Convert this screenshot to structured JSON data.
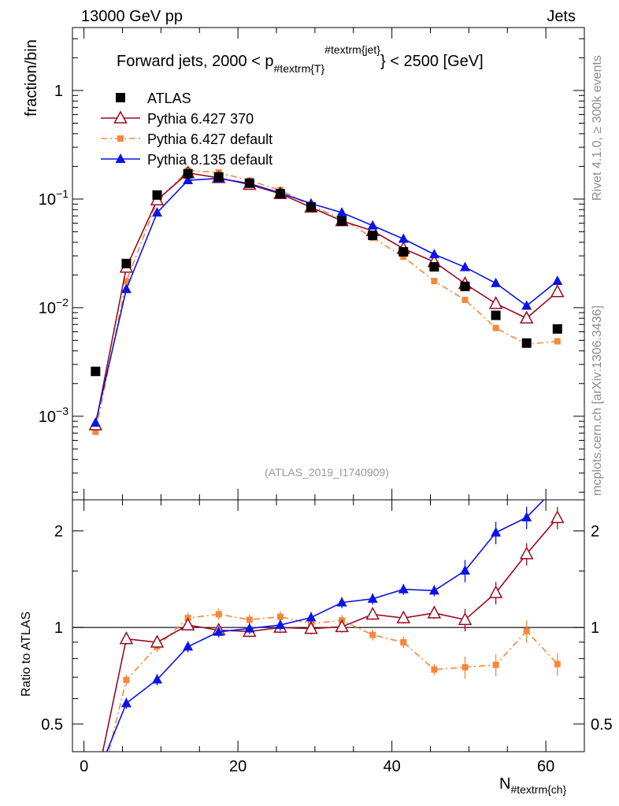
{
  "header": {
    "left": "13000 GeV pp",
    "right": "Jets"
  },
  "side_text": {
    "rivet": "Rivet 4.1.0, ≥ 300k events",
    "mcplots": "mcplots.cern.ch [arXiv:1306.3436]"
  },
  "analysis_id": "(ATLAS_2019_I1740909)",
  "chart_data": {
    "type": "line",
    "title": {
      "prefix": "Forward jets, 2000 < p",
      "sub": "#textrm{T}",
      "sup": "#textrm{jet}",
      "suffix": "} < 2500 [GeV]"
    },
    "xlabel": {
      "main": "N",
      "sub": "#textrm{ch}"
    },
    "ylabel": "fraction/bin",
    "ratio_ylabel": "Ratio to ATLAS",
    "xlim": [
      -1.5,
      65
    ],
    "ylim": [
      0.00017,
      3.8
    ],
    "yscale": "log",
    "ratio_ylim": [
      0.41,
      2.5
    ],
    "x_ticks": [
      "0",
      "20",
      "40",
      "60"
    ],
    "x_tick_values": [
      0,
      20,
      40,
      60
    ],
    "y_ticks": [
      {
        "base": "1",
        "exp": ""
      },
      {
        "base": "10",
        "exp": "−1"
      },
      {
        "base": "10",
        "exp": "−2"
      },
      {
        "base": "10",
        "exp": "−3"
      }
    ],
    "y_tick_values": [
      1,
      0.1,
      0.01,
      0.001
    ],
    "ratio_ticks": [
      "2",
      "1",
      "0.5"
    ],
    "ratio_tick_values": [
      2,
      1,
      0.5
    ],
    "x": [
      1.5,
      5.5,
      9.5,
      13.5,
      17.5,
      21.5,
      25.5,
      29.5,
      33.5,
      37.5,
      41.5,
      45.5,
      49.5,
      53.5,
      57.5,
      61.5
    ],
    "legend_position": "top-left",
    "series": [
      {
        "name": "ATLAS",
        "color": "#000000",
        "marker": "square-filled",
        "line": "none",
        "values": [
          0.00259,
          0.0255,
          0.109,
          0.171,
          0.16,
          0.14,
          0.112,
          0.0847,
          0.0627,
          0.0464,
          0.0327,
          0.0238,
          0.0157,
          0.0085,
          0.00472,
          0.00637
        ]
      },
      {
        "name": "Pythia 6.427 370",
        "color": "#9a0a1e",
        "marker": "triangle-open",
        "line": "solid",
        "values": [
          0.00083,
          0.0235,
          0.098,
          0.174,
          0.157,
          0.136,
          0.112,
          0.084,
          0.063,
          0.051,
          0.035,
          0.0264,
          0.0166,
          0.0109,
          0.008,
          0.014
        ]
      },
      {
        "name": "Pythia 6.427 default",
        "color": "#f5883a",
        "marker": "square-small",
        "line": "dashdot",
        "values": [
          0.00072,
          0.0175,
          0.095,
          0.183,
          0.176,
          0.148,
          0.121,
          0.087,
          0.066,
          0.044,
          0.0294,
          0.0176,
          0.0118,
          0.0065,
          0.0046,
          0.0049
        ]
      },
      {
        "name": "Pythia 8.135 default",
        "color": "#0a14e6",
        "marker": "triangle-filled",
        "line": "solid",
        "values": [
          0.00087,
          0.0148,
          0.075,
          0.149,
          0.155,
          0.139,
          0.114,
          0.091,
          0.075,
          0.057,
          0.043,
          0.031,
          0.0236,
          0.0168,
          0.0104,
          0.0176
        ]
      }
    ]
  }
}
